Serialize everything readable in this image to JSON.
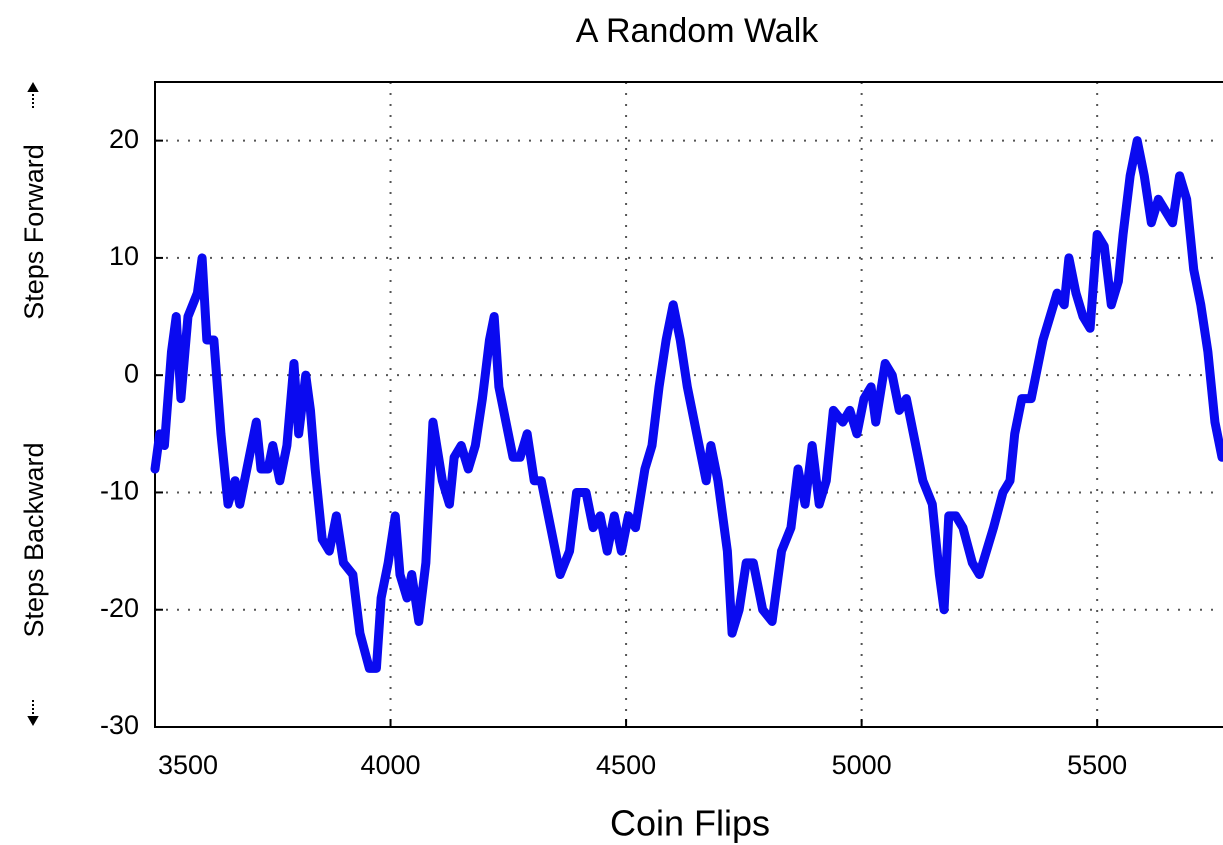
{
  "chart_data": {
    "type": "line",
    "title": "A Random Walk",
    "xlabel": "Coin Flips",
    "ylabel": {
      "lower": "Steps Backward",
      "upper": "Steps Forward"
    },
    "xlim": [
      3500,
      5765
    ],
    "ylim": [
      -30,
      25
    ],
    "xticks": [
      3500,
      4000,
      4500,
      5000,
      5500
    ],
    "yticks": [
      -30,
      -20,
      -10,
      0,
      10,
      20
    ],
    "grid": true,
    "series": [
      {
        "color": "#0a0af0",
        "x": [
          3500,
          3510,
          3520,
          3535,
          3545,
          3555,
          3570,
          3590,
          3600,
          3610,
          3625,
          3640,
          3655,
          3670,
          3680,
          3700,
          3715,
          3725,
          3740,
          3750,
          3765,
          3780,
          3795,
          3805,
          3820,
          3830,
          3840,
          3855,
          3870,
          3885,
          3900,
          3920,
          3935,
          3955,
          3970,
          3980,
          3995,
          4010,
          4020,
          4035,
          4045,
          4060,
          4075,
          4090,
          4110,
          4125,
          4135,
          4150,
          4165,
          4180,
          4195,
          4210,
          4220,
          4230,
          4245,
          4260,
          4275,
          4290,
          4305,
          4320,
          4340,
          4360,
          4380,
          4395,
          4415,
          4430,
          4445,
          4460,
          4475,
          4490,
          4505,
          4520,
          4540,
          4555,
          4570,
          4585,
          4600,
          4615,
          4630,
          4650,
          4670,
          4680,
          4695,
          4715,
          4725,
          4740,
          4755,
          4770,
          4790,
          4810,
          4830,
          4850,
          4865,
          4880,
          4895,
          4910,
          4925,
          4940,
          4960,
          4975,
          4990,
          5005,
          5020,
          5030,
          5050,
          5065,
          5080,
          5095,
          5110,
          5130,
          5150,
          5165,
          5175,
          5185,
          5200,
          5215,
          5235,
          5250,
          5265,
          5280,
          5300,
          5315,
          5325,
          5340,
          5360,
          5375,
          5385,
          5400,
          5415,
          5430,
          5440,
          5455,
          5470,
          5485,
          5500,
          5515,
          5530,
          5545,
          5555,
          5570,
          5585,
          5600,
          5615,
          5630,
          5645,
          5660,
          5675,
          5690,
          5705,
          5720,
          5735,
          5750,
          5765
        ],
        "values": [
          -8,
          -5,
          -6,
          2,
          5,
          -2,
          5,
          7,
          10,
          3,
          3,
          -5,
          -11,
          -9,
          -11,
          -7,
          -4,
          -8,
          -8,
          -6,
          -9,
          -6,
          1,
          -5,
          0,
          -3,
          -8,
          -14,
          -15,
          -12,
          -16,
          -17,
          -22,
          -25,
          -25,
          -19,
          -16,
          -12,
          -17,
          -19,
          -17,
          -21,
          -16,
          -4,
          -9,
          -11,
          -7,
          -6,
          -8,
          -6,
          -2,
          3,
          5,
          -1,
          -4,
          -7,
          -7,
          -5,
          -9,
          -9,
          -13,
          -17,
          -15,
          -10,
          -10,
          -13,
          -12,
          -15,
          -12,
          -15,
          -12,
          -13,
          -8,
          -6,
          -1,
          3,
          6,
          3,
          -1,
          -5,
          -9,
          -6,
          -9,
          -15,
          -22,
          -20,
          -16,
          -16,
          -20,
          -21,
          -15,
          -13,
          -8,
          -11,
          -6,
          -11,
          -9,
          -3,
          -4,
          -3,
          -5,
          -2,
          -1,
          -4,
          1,
          0,
          -3,
          -2,
          -5,
          -9,
          -11,
          -17,
          -20,
          -12,
          -12,
          -13,
          -16,
          -17,
          -15,
          -13,
          -10,
          -9,
          -5,
          -2,
          -2,
          1,
          3,
          5,
          7,
          6,
          10,
          7,
          5,
          4,
          12,
          11,
          6,
          8,
          12,
          17,
          20,
          17,
          13,
          15,
          14,
          13,
          17,
          15,
          9,
          6,
          2,
          -4,
          -7
        ]
      }
    ]
  }
}
